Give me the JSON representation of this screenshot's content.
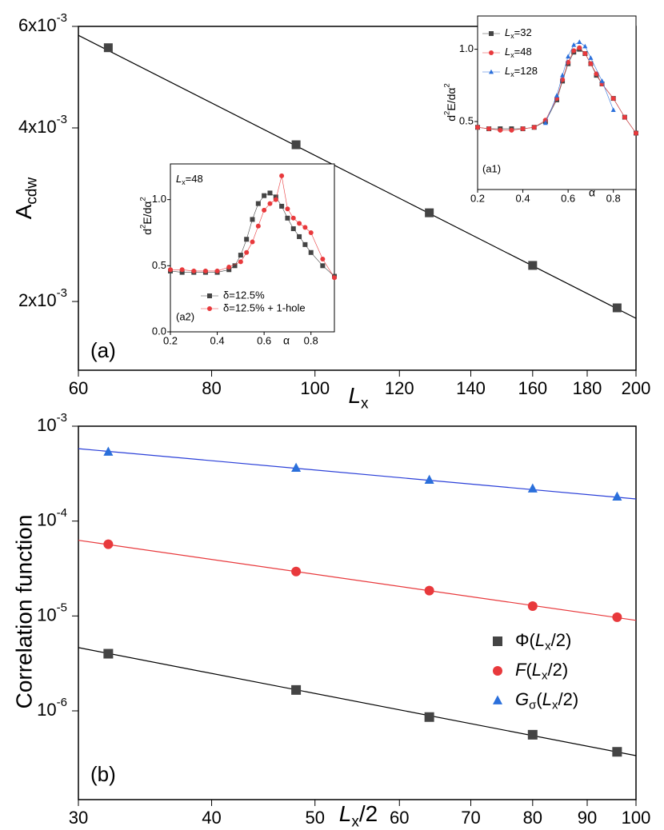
{
  "chart_data": [
    {
      "type": "scatter",
      "xlabel": [
        {
          "text": "L",
          "style": "italic"
        },
        {
          "text": "x",
          "style": "sub"
        }
      ],
      "ylabel": [
        {
          "text": "A"
        },
        {
          "text": "cdw",
          "style": "sub"
        }
      ],
      "xscale": "log",
      "yscale": "log",
      "xlim": [
        60,
        200
      ],
      "ylim": [
        0.00152,
        0.006
      ],
      "xticks": [
        60,
        80,
        100,
        120,
        140,
        160,
        180,
        200
      ],
      "yticks": [
        {
          "value": 0.002,
          "label": [
            {
              "text": "2x10"
            },
            {
              "text": "-3",
              "style": "sup"
            }
          ]
        },
        {
          "value": 0.004,
          "label": [
            {
              "text": "4x10"
            },
            {
              "text": "-3",
              "style": "sup"
            }
          ]
        },
        {
          "value": 0.006,
          "label": [
            {
              "text": "6x10"
            },
            {
              "text": "-3",
              "style": "sup"
            }
          ]
        }
      ],
      "annotations": [
        "(a)"
      ],
      "series": [
        {
          "marker": "square",
          "color": "#444444",
          "x": [
            64,
            96,
            128,
            160,
            192
          ],
          "values": [
            0.00551,
            0.00374,
            0.00285,
            0.00231,
            0.00195
          ]
        }
      ],
      "fits": [
        {
          "color": "#000000",
          "x": [
            60,
            200
          ],
          "values": [
            0.00579,
            0.00187
          ]
        }
      ]
    },
    {
      "type": "line",
      "xlabel": "α",
      "ylabel": [
        {
          "text": "d"
        },
        {
          "text": "2",
          "style": "sup"
        },
        {
          "text": "E/dα"
        },
        {
          "text": "2",
          "style": "sup"
        }
      ],
      "xlim": [
        0.2,
        0.9
      ],
      "ylim": [
        0.03,
        1.23
      ],
      "xticks": [
        0.2,
        0.4,
        0.6,
        0.8
      ],
      "yticks": [
        0.5,
        {
          "value": 1,
          "label": "1.0"
        }
      ],
      "annotations": [
        "(a1)"
      ],
      "legend": "upper left",
      "series": [
        {
          "name": [
            {
              "text": "L",
              "style": "italic"
            },
            {
              "text": "x",
              "style": "sub"
            },
            {
              "text": "=32"
            }
          ],
          "marker": "square",
          "color": "#444444",
          "x": [
            0.2,
            0.25,
            0.3,
            0.35,
            0.4,
            0.45,
            0.5,
            0.55,
            0.575,
            0.6,
            0.625,
            0.65,
            0.675,
            0.7,
            0.725,
            0.75,
            0.8,
            0.85,
            0.9
          ],
          "values": [
            0.46,
            0.45,
            0.45,
            0.45,
            0.45,
            0.46,
            0.5,
            0.65,
            0.78,
            0.9,
            0.98,
            1.0,
            0.97,
            0.9,
            0.82,
            0.76,
            0.66,
            0.53,
            0.42
          ]
        },
        {
          "name": [
            {
              "text": "L",
              "style": "italic"
            },
            {
              "text": "x",
              "style": "sub"
            },
            {
              "text": "=48"
            }
          ],
          "marker": "circle",
          "color": "#e8393c",
          "x": [
            0.2,
            0.25,
            0.3,
            0.35,
            0.4,
            0.45,
            0.5,
            0.55,
            0.575,
            0.6,
            0.625,
            0.65,
            0.675,
            0.7,
            0.725,
            0.75,
            0.8,
            0.85,
            0.9
          ],
          "values": [
            0.46,
            0.45,
            0.44,
            0.44,
            0.45,
            0.46,
            0.51,
            0.66,
            0.79,
            0.91,
            0.99,
            1.01,
            0.97,
            0.9,
            0.83,
            0.76,
            0.66,
            0.53,
            0.42
          ]
        },
        {
          "name": [
            {
              "text": "L",
              "style": "italic"
            },
            {
              "text": "x",
              "style": "sub"
            },
            {
              "text": "=128"
            }
          ],
          "marker": "triangle",
          "color": "#2a6fdb",
          "x": [
            0.5,
            0.55,
            0.575,
            0.6,
            0.625,
            0.65,
            0.675,
            0.7,
            0.75,
            0.8
          ],
          "values": [
            0.49,
            0.68,
            0.82,
            0.95,
            1.03,
            1.05,
            1.02,
            0.94,
            0.78,
            0.58
          ]
        }
      ]
    },
    {
      "type": "line",
      "xlabel": "α",
      "ylabel": [
        {
          "text": "d"
        },
        {
          "text": "2",
          "style": "sup"
        },
        {
          "text": "E/dα"
        },
        {
          "text": "2",
          "style": "sup"
        }
      ],
      "xlim": [
        0.2,
        0.9
      ],
      "ylim": [
        0,
        1.27
      ],
      "xticks": [
        0.2,
        0.4,
        0.6,
        0.8
      ],
      "yticks": [
        {
          "value": 0,
          "label": "0.0"
        },
        0.5,
        {
          "value": 1,
          "label": "1.0"
        }
      ],
      "annotations": [
        "(a2)",
        [
          {
            "text": "L",
            "style": "italic"
          },
          {
            "text": "x",
            "style": "sub"
          },
          {
            "text": "=48"
          }
        ]
      ],
      "legend": "lower left",
      "series": [
        {
          "name": "δ=12.5%",
          "marker": "square",
          "color": "#444444",
          "x": [
            0.2,
            0.25,
            0.3,
            0.35,
            0.4,
            0.45,
            0.475,
            0.5,
            0.525,
            0.55,
            0.575,
            0.6,
            0.625,
            0.65,
            0.675,
            0.7,
            0.725,
            0.75,
            0.775,
            0.8,
            0.85,
            0.9
          ],
          "values": [
            0.46,
            0.45,
            0.45,
            0.45,
            0.45,
            0.47,
            0.5,
            0.58,
            0.7,
            0.85,
            0.97,
            1.03,
            1.05,
            1.02,
            0.95,
            0.86,
            0.78,
            0.72,
            0.66,
            0.6,
            0.5,
            0.42
          ]
        },
        {
          "name": "δ=12.5% + 1-hole",
          "marker": "circle",
          "color": "#e8393c",
          "x": [
            0.2,
            0.25,
            0.3,
            0.35,
            0.4,
            0.45,
            0.5,
            0.525,
            0.55,
            0.575,
            0.6,
            0.625,
            0.65,
            0.675,
            0.7,
            0.725,
            0.75,
            0.775,
            0.8,
            0.85,
            0.9
          ],
          "values": [
            0.47,
            0.47,
            0.46,
            0.46,
            0.46,
            0.49,
            0.53,
            0.6,
            0.68,
            0.8,
            0.92,
            0.97,
            1.0,
            1.18,
            0.93,
            0.86,
            0.82,
            0.79,
            0.75,
            0.55,
            0.41
          ]
        }
      ]
    },
    {
      "type": "scatter",
      "xlabel": [
        {
          "text": "L",
          "style": "italic"
        },
        {
          "text": "x",
          "style": "sub"
        },
        {
          "text": "/2"
        }
      ],
      "ylabel": "Correlation function",
      "xscale": "log",
      "yscale": "log",
      "xlim": [
        30,
        100
      ],
      "ylim": [
        1.16e-07,
        0.001
      ],
      "xticks": [
        30,
        40,
        50,
        60,
        70,
        80,
        90,
        100
      ],
      "yticks": [
        {
          "value": 1e-06,
          "label": [
            {
              "text": "10"
            },
            {
              "text": "-6",
              "style": "sup"
            }
          ]
        },
        {
          "value": 1e-05,
          "label": [
            {
              "text": "10"
            },
            {
              "text": "-5",
              "style": "sup"
            }
          ]
        },
        {
          "value": 0.0001,
          "label": [
            {
              "text": "10"
            },
            {
              "text": "-4",
              "style": "sup"
            }
          ]
        },
        {
          "value": 0.001,
          "label": [
            {
              "text": "10"
            },
            {
              "text": "-3",
              "style": "sup"
            }
          ]
        }
      ],
      "annotations": [
        "(b)"
      ],
      "legend": "lower right",
      "series": [
        {
          "name": [
            {
              "text": "Φ("
            },
            {
              "text": "L",
              "style": "italic"
            },
            {
              "text": "x",
              "style": "sub"
            },
            {
              "text": "/2)"
            }
          ],
          "marker": "square",
          "color": "#444444",
          "x": [
            32,
            48,
            64,
            80,
            96
          ],
          "values": [
            4e-06,
            1.66e-06,
            8.6e-07,
            5.6e-07,
            3.7e-07
          ]
        },
        {
          "name": [
            {
              "text": "F",
              "style": "italic"
            },
            {
              "text": "("
            },
            {
              "text": "L",
              "style": "italic"
            },
            {
              "text": "x",
              "style": "sub"
            },
            {
              "text": "/2)"
            }
          ],
          "marker": "circle",
          "color": "#e8393c",
          "x": [
            32,
            48,
            64,
            80,
            96
          ],
          "values": [
            5.7e-05,
            2.94e-05,
            1.85e-05,
            1.27e-05,
            9.7e-06
          ]
        },
        {
          "name": [
            {
              "text": "G",
              "style": "italic"
            },
            {
              "text": "σ",
              "style": "sub"
            },
            {
              "text": "("
            },
            {
              "text": "L",
              "style": "italic"
            },
            {
              "text": "x",
              "style": "sub"
            },
            {
              "text": "/2)"
            }
          ],
          "marker": "triangle",
          "color": "#2a6fdb",
          "x": [
            32,
            48,
            64,
            80,
            96
          ],
          "values": [
            0.000537,
            0.000364,
            0.000272,
            0.00022,
            0.000181
          ]
        }
      ],
      "fits": [
        {
          "color": "#000000",
          "x": [
            30,
            100
          ],
          "values": [
            4.64e-06,
            3.37e-07
          ]
        },
        {
          "color": "#e8393c",
          "x": [
            30,
            100
          ],
          "values": [
            6.27e-05,
            9e-06
          ]
        },
        {
          "color": "#2a3fd8",
          "x": [
            30,
            100
          ],
          "values": [
            0.00058,
            0.000171
          ]
        }
      ]
    }
  ]
}
